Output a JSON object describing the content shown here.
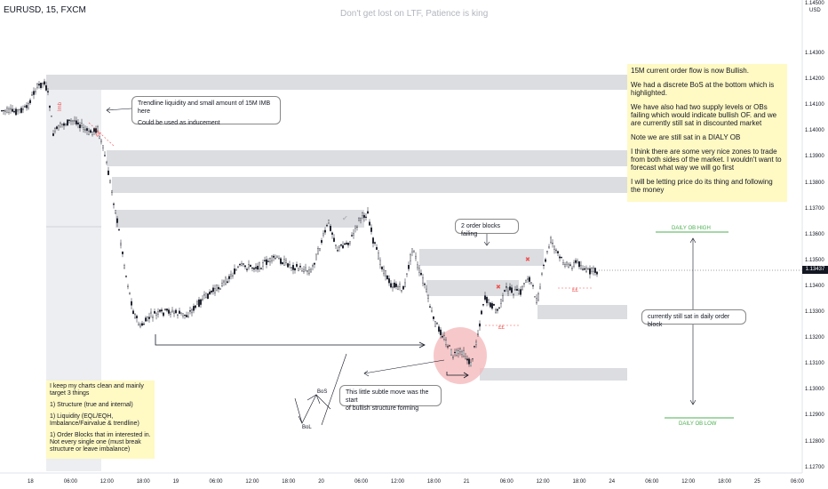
{
  "header": {
    "symbol": "EURUSD, 15, FXCM",
    "watermark": "Don't get lost on LTF, Patience is king",
    "currency": "USD",
    "top_price": "1.14500"
  },
  "price_axis": {
    "labels": [
      "1.14300",
      "1.14200",
      "1.14100",
      "1.14000",
      "1.13900",
      "1.13800",
      "1.13700",
      "1.13600",
      "1.13500",
      "1.13400",
      "1.13300",
      "1.13200",
      "1.13100",
      "1.13000",
      "1.12900",
      "1.12800",
      "1.12700"
    ],
    "current_price": "1.13437"
  },
  "time_axis": {
    "labels": [
      "18",
      "06:00",
      "12:00",
      "18:00",
      "19",
      "06:00",
      "12:00",
      "18:00",
      "20",
      "06:00",
      "12:00",
      "18:00",
      "21",
      "06:00",
      "12:00",
      "18:00",
      "24",
      "06:00",
      "12:00",
      "18:00",
      "25",
      "06:00"
    ]
  },
  "annotations": {
    "imb_label": "Imb",
    "ee1": "££",
    "ee2": "££",
    "ee3": "££",
    "x1": "✖",
    "x2": "✖",
    "check": "✔",
    "bos": "BoS",
    "bol": "BoL",
    "daily_ob_high": "DAILY OB HIGH",
    "daily_ob_low": "DAILY OB LOW"
  },
  "callouts": {
    "trendline": [
      "Trendline liquidity and small amount of 15M IMB here",
      "Could be used as inducement"
    ],
    "order_blocks": "2 order blocks failing",
    "daily_ob": "currently still sat in daily order block",
    "bullish_start": [
      "This little subtle move was the start",
      "of bullish structure forming"
    ]
  },
  "notes": {
    "right": [
      "15M current order flow is now Bullish.",
      "We had a discrete BoS at the bottom which is highlighted.",
      "We have also had two supply levels or OBs failing which would indicate bullish OF. and we are currently still sat in discounted market",
      "Note we are still sat in a DIALY OB",
      "I think there are some very nice zones to trade from both sides of the market. I wouldn't want to forecast what way we will go first",
      "I will be letting price do its thing and following the money"
    ],
    "left": [
      "I keep my charts clean and mainly target 3 things",
      "1) Structure (true and internal)",
      "1) Liquidity (EQL/EQH, Imbalance/Fairvalue & trendline)",
      "1) Order Blocks that im interested in. Not every single one (must break structure or leave imbalance)"
    ]
  },
  "colors": {
    "zone": "#dcdde1",
    "candle": "#131722",
    "highlight_ellipse": "#f4b6b8",
    "ob_line": "#4caf50",
    "note_bg": "#fff9c4",
    "red_mark": "#ef5350"
  }
}
